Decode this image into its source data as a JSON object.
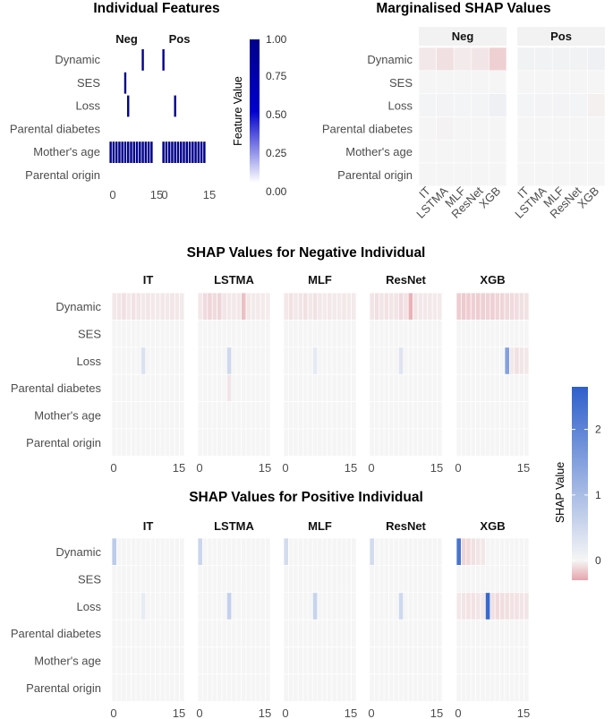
{
  "features": [
    "Dynamic",
    "SES",
    "Loss",
    "Parental diabetes",
    "Mother's age",
    "Parental origin"
  ],
  "models": [
    "IT",
    "LSTMA",
    "MLF",
    "ResNet",
    "XGB"
  ],
  "chart_data": [
    {
      "id": "individual",
      "type": "heatmap",
      "title": "Individual Features",
      "facets": [
        "Neg",
        "Pos"
      ],
      "x_ticks": [
        "0",
        "15",
        "0",
        "15"
      ],
      "time_steps": 15,
      "legend": {
        "title": "Feature Value",
        "ticks": [
          "1.00",
          "0.75",
          "0.50",
          "0.25",
          "0.00"
        ],
        "colors": [
          "#ffffff",
          "#0000cc",
          "#00008b"
        ]
      },
      "cells": {
        "Neg": {
          "Dynamic": {
            "11": 1
          },
          "SES": {
            "5": 1
          },
          "Loss": {
            "6": 1
          },
          "Mother's age": {
            "all": 1
          }
        },
        "Pos": {
          "Dynamic": {
            "0": 1
          },
          "Loss": {
            "4": 1
          },
          "Mother's age": {
            "all": 1
          }
        }
      }
    },
    {
      "id": "marginalised",
      "type": "heatmap",
      "title": "Marginalised SHAP Values",
      "facets": [
        "Neg",
        "Pos"
      ],
      "x_categories": [
        "IT",
        "LSTMA",
        "MLF",
        "ResNet",
        "XGB"
      ],
      "values": {
        "Neg": {
          "Dynamic": [
            -0.05,
            -0.08,
            -0.04,
            -0.06,
            -0.14
          ],
          "SES": [
            0,
            0,
            0,
            0,
            0
          ],
          "Loss": [
            0.02,
            0.03,
            0.02,
            0.02,
            0.08
          ],
          "Parental diabetes": [
            0,
            -0.01,
            0,
            0,
            0
          ],
          "Mother's age": [
            0,
            0,
            0,
            0,
            0
          ],
          "Parental origin": [
            0,
            0,
            0,
            0,
            0
          ]
        },
        "Pos": {
          "Dynamic": [
            0.06,
            0.05,
            0.05,
            0.05,
            0.08
          ],
          "SES": [
            0,
            0,
            0,
            0,
            0
          ],
          "Loss": [
            0.02,
            0.03,
            0.03,
            0.02,
            -0.02
          ],
          "Parental diabetes": [
            0,
            0,
            0,
            0,
            0
          ],
          "Mother's age": [
            0,
            0,
            0,
            0,
            0
          ],
          "Parental origin": [
            0,
            0,
            0,
            0,
            0
          ]
        }
      }
    },
    {
      "id": "neg_shap",
      "type": "heatmap",
      "title": "SHAP Values for Negative Individual",
      "facets": [
        "IT",
        "LSTMA",
        "MLF",
        "ResNet",
        "XGB"
      ],
      "x_ticks": [
        "0",
        "15",
        "0",
        "15",
        "0",
        "15",
        "0",
        "15",
        "0",
        "15"
      ],
      "time_steps": 15,
      "values": {
        "IT": {
          "Dynamic": [
            -0.05,
            -0.06,
            -0.08,
            -0.05,
            -0.07,
            -0.06,
            -0.05,
            -0.06,
            -0.05,
            -0.04,
            -0.05,
            -0.05,
            -0.06,
            -0.05,
            -0.04
          ],
          "Loss": {
            "6": 0.35
          }
        },
        "LSTMA": {
          "Dynamic": [
            -0.05,
            -0.1,
            -0.12,
            -0.1,
            -0.12,
            -0.06,
            -0.05,
            -0.05,
            -0.05,
            -0.2,
            -0.05,
            -0.04,
            -0.04,
            -0.04,
            -0.03
          ],
          "Loss": {
            "6": 0.5
          },
          "Parental diabetes": {
            "6": -0.06
          }
        },
        "MLF": {
          "Dynamic": [
            -0.05,
            -0.07,
            -0.05,
            -0.06,
            -0.08,
            -0.05,
            -0.07,
            -0.05,
            -0.04,
            -0.05,
            -0.04,
            -0.04,
            -0.05,
            -0.04,
            -0.04
          ],
          "Loss": {
            "6": 0.22
          }
        },
        "ResNet": {
          "Dynamic": [
            -0.06,
            -0.08,
            -0.06,
            -0.07,
            -0.06,
            -0.06,
            -0.1,
            -0.07,
            -0.25,
            -0.06,
            -0.05,
            -0.05,
            -0.05,
            -0.04,
            -0.04
          ],
          "Loss": {
            "6": 0.3
          }
        },
        "XGB": {
          "Dynamic": [
            -0.15,
            -0.16,
            -0.15,
            -0.14,
            -0.15,
            -0.14,
            -0.13,
            -0.14,
            -0.12,
            -0.12,
            -0.11,
            -0.1,
            -0.09,
            -0.08,
            -0.07
          ],
          "Loss": {
            "10": 1.5,
            "11": -0.05,
            "12": -0.08,
            "13": -0.06,
            "14": -0.05
          }
        }
      }
    },
    {
      "id": "pos_shap",
      "type": "heatmap",
      "title": "SHAP Values for Positive Individual",
      "facets": [
        "IT",
        "LSTMA",
        "MLF",
        "ResNet",
        "XGB"
      ],
      "x_ticks": [
        "0",
        "15",
        "0",
        "15",
        "0",
        "15",
        "0",
        "15",
        "0",
        "15"
      ],
      "time_steps": 15,
      "values": {
        "IT": {
          "Dynamic": {
            "0": 0.75
          },
          "Loss": {
            "6": 0.18
          }
        },
        "LSTMA": {
          "Dynamic": {
            "0": 0.55
          },
          "Loss": {
            "6": 0.65
          }
        },
        "MLF": {
          "Dynamic": {
            "0": 0.45
          },
          "Loss": {
            "6": 0.6
          }
        },
        "ResNet": {
          "Dynamic": {
            "0": 0.45
          },
          "Loss": {
            "6": 0.5
          }
        },
        "XGB": {
          "Dynamic": {
            "0": 2.3,
            "1": -0.12,
            "2": -0.1,
            "3": -0.08,
            "4": -0.06,
            "5": -0.05
          },
          "Loss": {
            "0": -0.05,
            "1": -0.06,
            "2": -0.07,
            "3": -0.07,
            "4": -0.06,
            "5": -0.05,
            "6": 2.5,
            "7": -0.08,
            "8": -0.1,
            "9": -0.09,
            "10": -0.08,
            "11": -0.07,
            "12": -0.07,
            "13": -0.06,
            "14": -0.06
          }
        }
      }
    }
  ],
  "shap_legend": {
    "title": "SHAP Value",
    "ticks": [
      "2",
      "1",
      "0"
    ],
    "tick_values": [
      2,
      1,
      0
    ],
    "min": -0.3,
    "max": 2.65,
    "neg_color": "#e6a5ad",
    "mid_color": "#f5f5f5",
    "pos_color": "#2d5fcc"
  }
}
